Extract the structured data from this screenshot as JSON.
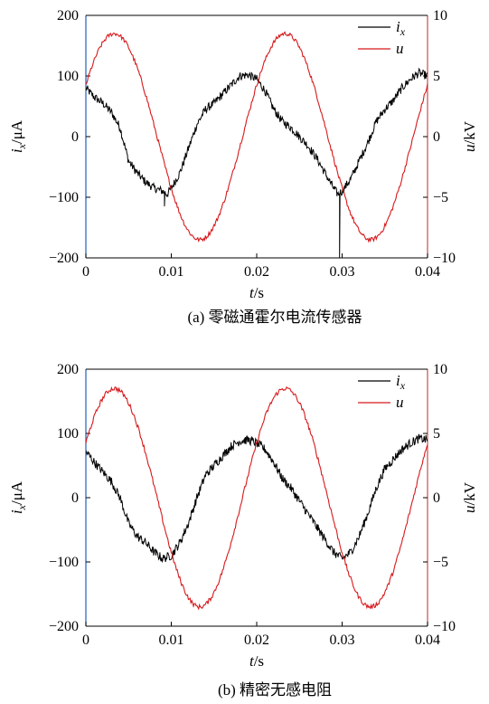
{
  "chart_data": [
    {
      "type": "line",
      "caption": "(a) 零磁通霍尔电流传感器",
      "xlabel_var": "t",
      "xlabel_unit": "/s",
      "ylabel_left_var": "i",
      "ylabel_left_sub": "x",
      "ylabel_left_unit": "/μA",
      "ylabel_right_var": "u",
      "ylabel_right_unit": "/kV",
      "xlim": [
        0,
        0.04
      ],
      "ylim_left": [
        -200,
        200
      ],
      "ylim_right": [
        -10,
        10
      ],
      "x_ticks": [
        "0",
        "0.01",
        "0.02",
        "0.03",
        "0.04"
      ],
      "y_left_ticks": [
        "200",
        "100",
        "0",
        "−100",
        "−200"
      ],
      "y_right_ticks": [
        "10",
        "5",
        "0",
        "−5",
        "−10"
      ],
      "legend_position": "top-right",
      "left_axis_color": "#1f5fbf",
      "right_axis_color": "#c0504d",
      "series": [
        {
          "name": "i",
          "name_sub": "x",
          "axis": "left",
          "color": "#000000",
          "x": [
            0,
            0.001,
            0.002,
            0.003,
            0.004,
            0.005,
            0.006,
            0.007,
            0.008,
            0.009,
            0.0095,
            0.01,
            0.011,
            0.012,
            0.013,
            0.014,
            0.015,
            0.016,
            0.017,
            0.018,
            0.019,
            0.02,
            0.021,
            0.022,
            0.023,
            0.024,
            0.025,
            0.026,
            0.027,
            0.028,
            0.029,
            0.0295,
            0.03,
            0.031,
            0.032,
            0.033,
            0.034,
            0.035,
            0.036,
            0.037,
            0.038,
            0.039,
            0.04
          ],
          "values": [
            80,
            65,
            55,
            40,
            15,
            -40,
            -60,
            -75,
            -85,
            -90,
            -95,
            -85,
            -60,
            -20,
            20,
            45,
            55,
            70,
            85,
            100,
            102,
            95,
            75,
            45,
            25,
            15,
            0,
            -15,
            -35,
            -60,
            -85,
            -95,
            -90,
            -70,
            -40,
            -10,
            25,
            45,
            60,
            80,
            95,
            105,
            100
          ],
          "spikes": [
            {
              "x": 0.0092,
              "y": -115
            },
            {
              "x": 0.0297,
              "y": -200
            }
          ]
        },
        {
          "name": "u",
          "axis": "right",
          "color": "#d7191c",
          "amplitude": 8.5,
          "period": 0.02,
          "phase_deg": 30
        }
      ]
    },
    {
      "type": "line",
      "caption": "(b) 精密无感电阻",
      "xlabel_var": "t",
      "xlabel_unit": "/s",
      "ylabel_left_var": "i",
      "ylabel_left_sub": "x",
      "ylabel_left_unit": "/μA",
      "ylabel_right_var": "u",
      "ylabel_right_unit": "/kV",
      "xlim": [
        0,
        0.04
      ],
      "ylim_left": [
        -200,
        200
      ],
      "ylim_right": [
        -10,
        10
      ],
      "x_ticks": [
        "0",
        "0.01",
        "0.02",
        "0.03",
        "0.04"
      ],
      "y_left_ticks": [
        "200",
        "100",
        "0",
        "−100",
        "−200"
      ],
      "y_right_ticks": [
        "10",
        "5",
        "0",
        "−5",
        "−10"
      ],
      "legend_position": "top-right",
      "left_axis_color": "#1f5fbf",
      "right_axis_color": "#c0504d",
      "series": [
        {
          "name": "i",
          "name_sub": "x",
          "axis": "left",
          "color": "#000000",
          "x": [
            0,
            0.001,
            0.002,
            0.003,
            0.004,
            0.005,
            0.006,
            0.007,
            0.008,
            0.009,
            0.01,
            0.011,
            0.012,
            0.013,
            0.014,
            0.015,
            0.016,
            0.017,
            0.018,
            0.019,
            0.02,
            0.021,
            0.022,
            0.023,
            0.024,
            0.025,
            0.026,
            0.027,
            0.028,
            0.029,
            0.03,
            0.031,
            0.032,
            0.033,
            0.034,
            0.035,
            0.036,
            0.037,
            0.038,
            0.039,
            0.04
          ],
          "values": [
            72,
            55,
            40,
            25,
            0,
            -40,
            -60,
            -70,
            -85,
            -95,
            -90,
            -70,
            -40,
            0,
            35,
            50,
            65,
            80,
            88,
            90,
            85,
            75,
            55,
            30,
            15,
            -5,
            -25,
            -45,
            -65,
            -85,
            -95,
            -85,
            -60,
            -25,
            15,
            45,
            60,
            75,
            85,
            92,
            90
          ]
        },
        {
          "name": "u",
          "axis": "right",
          "color": "#d7191c",
          "amplitude": 8.5,
          "period": 0.02,
          "phase_deg": 30
        }
      ]
    }
  ]
}
